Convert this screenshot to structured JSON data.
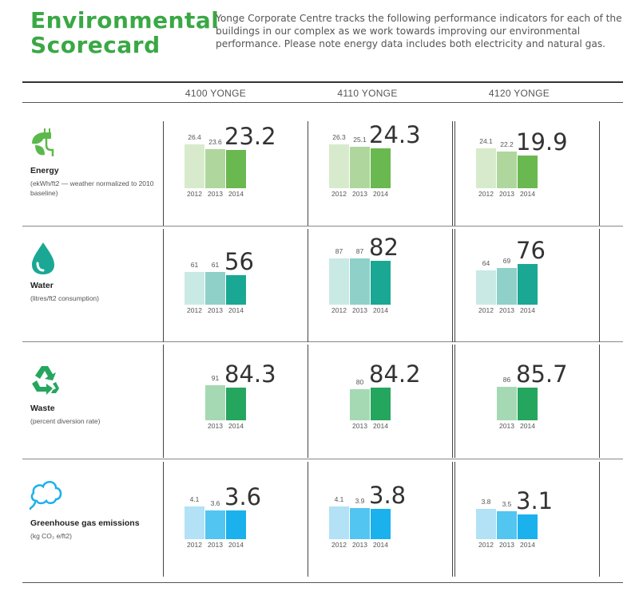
{
  "header": {
    "title_line1": "Environmental",
    "title_line2": "Scorecard",
    "intro": "Yonge Corporate Centre tracks the following performance indicators for each of the buildings in our complex as we work towards improving our environmental performance. Please note energy data includes both electricity and natural gas."
  },
  "columns": [
    "4100 YONGE",
    "4110 YONGE",
    "4120 YONGE"
  ],
  "rows": [
    {
      "label": "Energy",
      "sublabel": "(ekWh/ft2 — weather normalized to 2010 baseline)",
      "icon": "plug-leaf-icon"
    },
    {
      "label": "Water",
      "sublabel": "(litres/ft2 consumption)",
      "icon": "water-drop-icon"
    },
    {
      "label": "Waste",
      "sublabel": "(percent diversion rate)",
      "icon": "recycle-icon"
    },
    {
      "label": "Greenhouse gas emissions",
      "sublabel": "(kg CO₂ e/ft2)",
      "icon": "cloud-icon"
    }
  ],
  "colors": {
    "energy": [
      "#d7ebcc",
      "#afd79d",
      "#6ab850"
    ],
    "water": [
      "#c9e9e5",
      "#8fd0c8",
      "#1aa894"
    ],
    "waste": [
      "#a5d9b4",
      "#25a65e"
    ],
    "ghg": [
      "#b3e1f6",
      "#52c5f0",
      "#1ab1ec"
    ]
  },
  "chart_data": [
    {
      "type": "bar",
      "metric": "Energy",
      "building": "4100 YONGE",
      "categories": [
        "2012",
        "2013",
        "2014"
      ],
      "values": [
        26.4,
        23.6,
        23.2
      ]
    },
    {
      "type": "bar",
      "metric": "Energy",
      "building": "4110 YONGE",
      "categories": [
        "2012",
        "2013",
        "2014"
      ],
      "values": [
        26.3,
        25.1,
        24.3
      ]
    },
    {
      "type": "bar",
      "metric": "Energy",
      "building": "4120 YONGE",
      "categories": [
        "2012",
        "2013",
        "2014"
      ],
      "values": [
        24.1,
        22.2,
        19.9
      ]
    },
    {
      "type": "bar",
      "metric": "Water",
      "building": "4100 YONGE",
      "categories": [
        "2012",
        "2013",
        "2014"
      ],
      "values": [
        61,
        61,
        56
      ]
    },
    {
      "type": "bar",
      "metric": "Water",
      "building": "4110 YONGE",
      "categories": [
        "2012",
        "2013",
        "2014"
      ],
      "values": [
        87,
        87,
        82
      ]
    },
    {
      "type": "bar",
      "metric": "Water",
      "building": "4120 YONGE",
      "categories": [
        "2012",
        "2013",
        "2014"
      ],
      "values": [
        64,
        69,
        76
      ]
    },
    {
      "type": "bar",
      "metric": "Waste",
      "building": "4100 YONGE",
      "categories": [
        "2013",
        "2014"
      ],
      "values": [
        91,
        84.3
      ]
    },
    {
      "type": "bar",
      "metric": "Waste",
      "building": "4110 YONGE",
      "categories": [
        "2013",
        "2014"
      ],
      "values": [
        80,
        84.2
      ]
    },
    {
      "type": "bar",
      "metric": "Waste",
      "building": "4120 YONGE",
      "categories": [
        "2013",
        "2014"
      ],
      "values": [
        86,
        85.7
      ]
    },
    {
      "type": "bar",
      "metric": "Greenhouse gas emissions",
      "building": "4100 YONGE",
      "categories": [
        "2012",
        "2013",
        "2014"
      ],
      "values": [
        4.1,
        3.6,
        3.6
      ]
    },
    {
      "type": "bar",
      "metric": "Greenhouse gas emissions",
      "building": "4110 YONGE",
      "categories": [
        "2012",
        "2013",
        "2014"
      ],
      "values": [
        4.1,
        3.9,
        3.8
      ]
    },
    {
      "type": "bar",
      "metric": "Greenhouse gas emissions",
      "building": "4120 YONGE",
      "categories": [
        "2012",
        "2013",
        "2014"
      ],
      "values": [
        3.8,
        3.5,
        3.1
      ]
    }
  ]
}
